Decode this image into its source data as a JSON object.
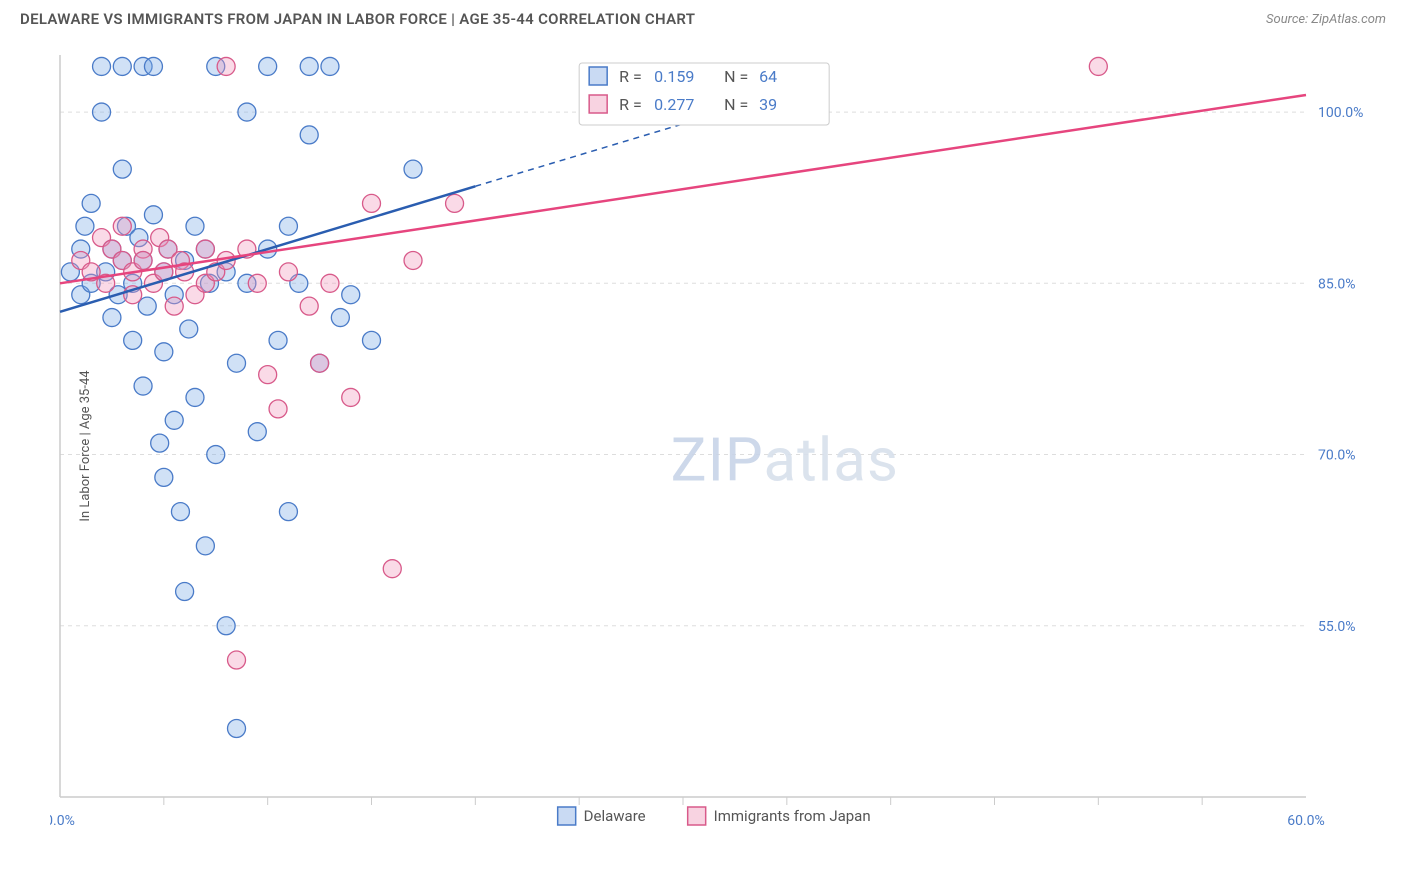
{
  "header": {
    "title": "DELAWARE VS IMMIGRANTS FROM JAPAN IN LABOR FORCE | AGE 35-44 CORRELATION CHART",
    "source": "Source: ZipAtlas.com"
  },
  "chart": {
    "type": "scatter",
    "y_axis_label": "In Labor Force | Age 35-44",
    "xlim": [
      0,
      60
    ],
    "ylim": [
      40,
      105
    ],
    "x_ticks": [
      {
        "v": 0,
        "label": "0.0%"
      },
      {
        "v": 60,
        "label": "60.0%"
      }
    ],
    "x_minor_ticks": [
      5,
      10,
      15,
      20,
      25,
      30,
      35,
      40,
      45,
      50,
      55
    ],
    "y_ticks": [
      {
        "v": 55,
        "label": "55.0%"
      },
      {
        "v": 70,
        "label": "70.0%"
      },
      {
        "v": 85,
        "label": "85.0%"
      },
      {
        "v": 100,
        "label": "100.0%"
      }
    ],
    "background_color": "#ffffff",
    "grid_color": "#dddddd",
    "axis_color": "#cccccc",
    "marker_radius": 9,
    "watermark": {
      "part1": "ZIP",
      "part2": "atlas"
    },
    "series": [
      {
        "key": "delaware",
        "label": "Delaware",
        "marker_fill": "rgba(120,170,230,0.35)",
        "marker_stroke": "#4a7bc8",
        "trend_color": "#2a5db0",
        "R": "0.159",
        "N": "64",
        "trend": {
          "x1": 0,
          "y1": 82.5,
          "x2": 20,
          "y2": 93.5,
          "x2_dash": 35,
          "y2_dash": 101.7
        },
        "points": [
          [
            0.5,
            86
          ],
          [
            1,
            84
          ],
          [
            1,
            88
          ],
          [
            1.2,
            90
          ],
          [
            1.5,
            85
          ],
          [
            1.5,
            92
          ],
          [
            2,
            104
          ],
          [
            2,
            100
          ],
          [
            2.2,
            86
          ],
          [
            2.5,
            88
          ],
          [
            2.5,
            82
          ],
          [
            2.8,
            84
          ],
          [
            3,
            104
          ],
          [
            3,
            87
          ],
          [
            3,
            95
          ],
          [
            3.2,
            90
          ],
          [
            3.5,
            85
          ],
          [
            3.5,
            80
          ],
          [
            3.8,
            89
          ],
          [
            4,
            104
          ],
          [
            4,
            87
          ],
          [
            4,
            76
          ],
          [
            4.2,
            83
          ],
          [
            4.5,
            91
          ],
          [
            4.5,
            104
          ],
          [
            4.8,
            71
          ],
          [
            5,
            79
          ],
          [
            5,
            68
          ],
          [
            5,
            86
          ],
          [
            5.2,
            88
          ],
          [
            5.5,
            73
          ],
          [
            5.5,
            84
          ],
          [
            5.8,
            65
          ],
          [
            6,
            87
          ],
          [
            6,
            58
          ],
          [
            6.2,
            81
          ],
          [
            6.5,
            90
          ],
          [
            6.5,
            75
          ],
          [
            7,
            88
          ],
          [
            7,
            62
          ],
          [
            7.2,
            85
          ],
          [
            7.5,
            104
          ],
          [
            7.5,
            70
          ],
          [
            8,
            55
          ],
          [
            8,
            86
          ],
          [
            8.5,
            78
          ],
          [
            8.5,
            46
          ],
          [
            9,
            85
          ],
          [
            9,
            100
          ],
          [
            9.5,
            72
          ],
          [
            10,
            88
          ],
          [
            10,
            104
          ],
          [
            10.5,
            80
          ],
          [
            11,
            90
          ],
          [
            11,
            65
          ],
          [
            11.5,
            85
          ],
          [
            12,
            98
          ],
          [
            12,
            104
          ],
          [
            12.5,
            78
          ],
          [
            13,
            104
          ],
          [
            13.5,
            82
          ],
          [
            14,
            84
          ],
          [
            15,
            80
          ],
          [
            17,
            95
          ]
        ]
      },
      {
        "key": "japan",
        "label": "Immigrants from Japan",
        "marker_fill": "rgba(240,150,185,0.35)",
        "marker_stroke": "#d85a8a",
        "trend_color": "#e6457e",
        "R": "0.277",
        "N": "39",
        "trend": {
          "x1": 0,
          "y1": 85,
          "x2": 60,
          "y2": 101.5
        },
        "points": [
          [
            1,
            87
          ],
          [
            1.5,
            86
          ],
          [
            2,
            89
          ],
          [
            2.2,
            85
          ],
          [
            2.5,
            88
          ],
          [
            3,
            87
          ],
          [
            3,
            90
          ],
          [
            3.5,
            86
          ],
          [
            3.5,
            84
          ],
          [
            4,
            88
          ],
          [
            4,
            87
          ],
          [
            4.5,
            85
          ],
          [
            4.8,
            89
          ],
          [
            5,
            86
          ],
          [
            5.2,
            88
          ],
          [
            5.5,
            83
          ],
          [
            5.8,
            87
          ],
          [
            6,
            86
          ],
          [
            6.5,
            84
          ],
          [
            7,
            88
          ],
          [
            7,
            85
          ],
          [
            7.5,
            86
          ],
          [
            8,
            87
          ],
          [
            8,
            104
          ],
          [
            8.5,
            52
          ],
          [
            9,
            88
          ],
          [
            9.5,
            85
          ],
          [
            10,
            77
          ],
          [
            10.5,
            74
          ],
          [
            11,
            86
          ],
          [
            12,
            83
          ],
          [
            12.5,
            78
          ],
          [
            13,
            85
          ],
          [
            14,
            75
          ],
          [
            15,
            92
          ],
          [
            16,
            60
          ],
          [
            17,
            87
          ],
          [
            19,
            92
          ],
          [
            50,
            104
          ]
        ]
      }
    ],
    "legend": {
      "items": [
        {
          "key": "delaware",
          "label": "Delaware"
        },
        {
          "key": "japan",
          "label": "Immigrants from Japan"
        }
      ]
    },
    "stats_box": {
      "rows": [
        {
          "swatch": "b",
          "r_label": "R =",
          "r_val": "0.159",
          "n_label": "N =",
          "n_val": "64"
        },
        {
          "swatch": "p",
          "r_label": "R =",
          "r_val": "0.277",
          "n_label": "N =",
          "n_val": "39"
        }
      ]
    }
  }
}
